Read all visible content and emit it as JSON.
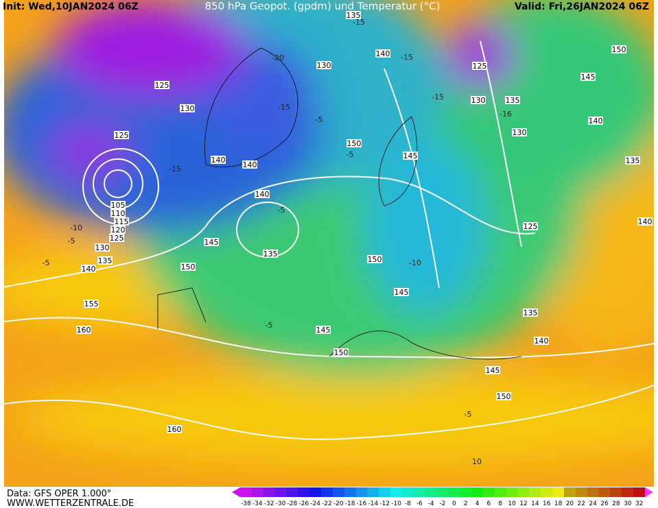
{
  "header": {
    "init": "Init: Wed,10JAN2024 06Z",
    "title": "850 hPa Geopot. (gpdm) und Temperatur (°C)",
    "valid": "Valid: Fri,26JAN2024 06Z"
  },
  "footer": {
    "data": "Data: GFS OPER 1.000°",
    "site": "WWW.WETTERZENTRALE.DE"
  },
  "colorbar": {
    "labels": [
      -38,
      -34,
      -32,
      -30,
      -28,
      -26,
      -24,
      -22,
      -20,
      -18,
      -16,
      -14,
      -12,
      -10,
      -8,
      -6,
      -4,
      -2,
      0,
      2,
      4,
      6,
      8,
      10,
      12,
      14,
      16,
      18,
      20,
      22,
      24,
      26,
      28,
      30,
      32
    ]
  },
  "geopotential_labels": [
    135,
    140,
    130,
    125,
    130,
    125,
    140,
    140,
    150,
    145,
    140,
    105,
    110,
    115,
    120,
    125,
    130,
    135,
    140,
    145,
    135,
    150,
    150,
    145,
    155,
    160,
    145,
    150,
    125,
    130,
    135,
    130,
    150,
    145,
    140,
    135,
    140,
    125,
    135,
    140,
    145,
    150,
    160
  ],
  "temperature_labels": [
    "-15",
    "-15",
    "-20",
    "-15",
    "-5",
    "-15",
    "-16",
    "-15",
    "-5",
    "-5",
    "-10",
    "-5",
    "-5",
    "-5",
    "-10",
    "-5",
    "10"
  ]
}
